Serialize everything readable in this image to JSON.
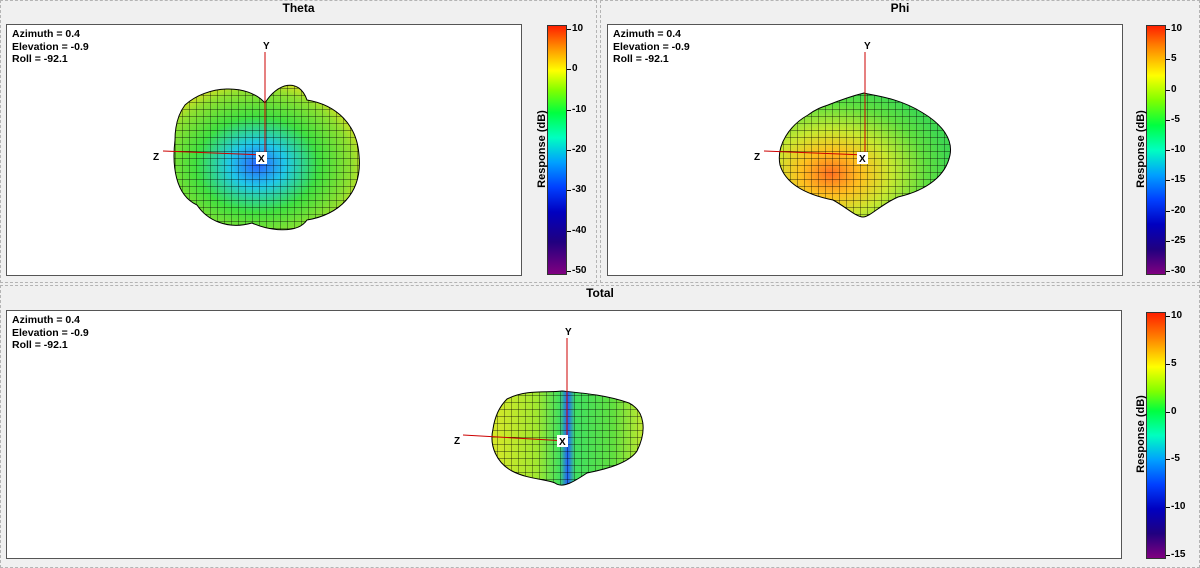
{
  "panels": {
    "theta": {
      "title": "Theta",
      "readout": {
        "azimuth": "Azimuth = 0.4",
        "elevation": "Elevation = -0.9",
        "roll": "Roll = -92.1"
      },
      "axes": {
        "y": "Y",
        "z": "Z",
        "x": "X"
      },
      "colorbar": {
        "label": "Response  (dB)",
        "min": -50,
        "max": 10,
        "ticks": [
          "10",
          "0",
          "-10",
          "-20",
          "-30",
          "-40",
          "-50"
        ]
      }
    },
    "phi": {
      "title": "Phi",
      "readout": {
        "azimuth": "Azimuth = 0.4",
        "elevation": "Elevation = -0.9",
        "roll": "Roll = -92.1"
      },
      "axes": {
        "y": "Y",
        "z": "Z",
        "x": "X"
      },
      "colorbar": {
        "label": "Response  (dB)",
        "min": -30,
        "max": 10,
        "ticks": [
          "10",
          "5",
          "0",
          "-5",
          "-10",
          "-15",
          "-20",
          "-25",
          "-30"
        ]
      }
    },
    "total": {
      "title": "Total",
      "readout": {
        "azimuth": "Azimuth = 0.4",
        "elevation": "Elevation = -0.9",
        "roll": "Roll = -92.1"
      },
      "axes": {
        "y": "Y",
        "z": "Z",
        "x": "X"
      },
      "colorbar": {
        "label": "Response  (dB)",
        "min": -15,
        "max": 10,
        "ticks": [
          "10",
          "5",
          "0",
          "-5",
          "-10",
          "-15"
        ]
      }
    }
  },
  "colors": {
    "axis_line": "#cc0000",
    "mesh_line": "#000000"
  }
}
